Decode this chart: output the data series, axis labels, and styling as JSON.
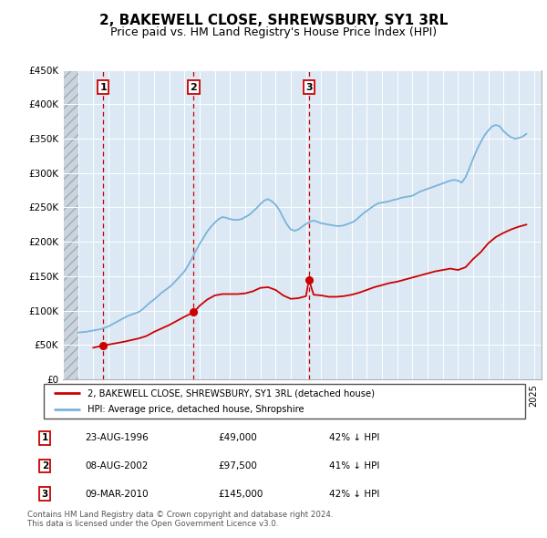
{
  "title": "2, BAKEWELL CLOSE, SHREWSBURY, SY1 3RL",
  "subtitle": "Price paid vs. HM Land Registry's House Price Index (HPI)",
  "title_fontsize": 11,
  "subtitle_fontsize": 9,
  "bg_color": "#ffffff",
  "plot_bg_color": "#dce9f5",
  "grid_color": "#ffffff",
  "ylim": [
    0,
    450000
  ],
  "yticks": [
    0,
    50000,
    100000,
    150000,
    200000,
    250000,
    300000,
    350000,
    400000,
    450000
  ],
  "ytick_labels": [
    "£0",
    "£50K",
    "£100K",
    "£150K",
    "£200K",
    "£250K",
    "£300K",
    "£350K",
    "£400K",
    "£450K"
  ],
  "xlim_start": 1994.0,
  "xlim_end": 2025.5,
  "sale_dates": [
    1996.644,
    2002.604,
    2010.187
  ],
  "sale_prices": [
    49000,
    97500,
    145000
  ],
  "sale_labels": [
    "1",
    "2",
    "3"
  ],
  "red_line_color": "#cc0000",
  "blue_line_color": "#7ab3d9",
  "legend_red_label": "2, BAKEWELL CLOSE, SHREWSBURY, SY1 3RL (detached house)",
  "legend_blue_label": "HPI: Average price, detached house, Shropshire",
  "table_rows": [
    [
      "1",
      "23-AUG-1996",
      "£49,000",
      "42% ↓ HPI"
    ],
    [
      "2",
      "08-AUG-2002",
      "£97,500",
      "41% ↓ HPI"
    ],
    [
      "3",
      "09-MAR-2010",
      "£145,000",
      "42% ↓ HPI"
    ]
  ],
  "footnote": "Contains HM Land Registry data © Crown copyright and database right 2024.\nThis data is licensed under the Open Government Licence v3.0.",
  "hpi_data": {
    "years": [
      1995.0,
      1995.25,
      1995.5,
      1995.75,
      1996.0,
      1996.25,
      1996.5,
      1996.75,
      1997.0,
      1997.25,
      1997.5,
      1997.75,
      1998.0,
      1998.25,
      1998.5,
      1998.75,
      1999.0,
      1999.25,
      1999.5,
      1999.75,
      2000.0,
      2000.25,
      2000.5,
      2000.75,
      2001.0,
      2001.25,
      2001.5,
      2001.75,
      2002.0,
      2002.25,
      2002.5,
      2002.75,
      2003.0,
      2003.25,
      2003.5,
      2003.75,
      2004.0,
      2004.25,
      2004.5,
      2004.75,
      2005.0,
      2005.25,
      2005.5,
      2005.75,
      2006.0,
      2006.25,
      2006.5,
      2006.75,
      2007.0,
      2007.25,
      2007.5,
      2007.75,
      2008.0,
      2008.25,
      2008.5,
      2008.75,
      2009.0,
      2009.25,
      2009.5,
      2009.75,
      2010.0,
      2010.25,
      2010.5,
      2010.75,
      2011.0,
      2011.25,
      2011.5,
      2011.75,
      2012.0,
      2012.25,
      2012.5,
      2012.75,
      2013.0,
      2013.25,
      2013.5,
      2013.75,
      2014.0,
      2014.25,
      2014.5,
      2014.75,
      2015.0,
      2015.25,
      2015.5,
      2015.75,
      2016.0,
      2016.25,
      2016.5,
      2016.75,
      2017.0,
      2017.25,
      2017.5,
      2017.75,
      2018.0,
      2018.25,
      2018.5,
      2018.75,
      2019.0,
      2019.25,
      2019.5,
      2019.75,
      2020.0,
      2020.25,
      2020.5,
      2020.75,
      2021.0,
      2021.25,
      2021.5,
      2021.75,
      2022.0,
      2022.25,
      2022.5,
      2022.75,
      2023.0,
      2023.25,
      2023.5,
      2023.75,
      2024.0,
      2024.25,
      2024.5
    ],
    "values": [
      68000,
      68500,
      69000,
      70000,
      71000,
      72000,
      73000,
      75000,
      77000,
      80000,
      83000,
      86000,
      89000,
      92000,
      94000,
      96000,
      98000,
      102000,
      107000,
      112000,
      116000,
      121000,
      126000,
      130000,
      134000,
      139000,
      145000,
      151000,
      157000,
      166000,
      176000,
      187000,
      197000,
      206000,
      215000,
      222000,
      228000,
      233000,
      236000,
      235000,
      233000,
      232000,
      232000,
      233000,
      236000,
      239000,
      244000,
      249000,
      255000,
      260000,
      262000,
      259000,
      254000,
      246000,
      235000,
      225000,
      218000,
      216000,
      218000,
      222000,
      226000,
      229000,
      231000,
      229000,
      227000,
      226000,
      225000,
      224000,
      223000,
      223000,
      224000,
      226000,
      228000,
      231000,
      236000,
      241000,
      245000,
      249000,
      253000,
      256000,
      257000,
      258000,
      259000,
      261000,
      262000,
      264000,
      265000,
      266000,
      267000,
      270000,
      273000,
      275000,
      277000,
      279000,
      281000,
      283000,
      285000,
      287000,
      289000,
      290000,
      289000,
      286000,
      294000,
      307000,
      321000,
      334000,
      345000,
      355000,
      362000,
      368000,
      370000,
      368000,
      361000,
      356000,
      352000,
      350000,
      351000,
      353000,
      357000
    ]
  },
  "red_data": {
    "years": [
      1996.0,
      1996.644,
      1997.0,
      1997.5,
      1998.0,
      1998.5,
      1999.0,
      1999.5,
      2000.0,
      2000.5,
      2001.0,
      2001.5,
      2002.0,
      2002.604,
      2003.0,
      2003.5,
      2004.0,
      2004.5,
      2005.0,
      2005.5,
      2006.0,
      2006.5,
      2007.0,
      2007.5,
      2008.0,
      2008.5,
      2009.0,
      2009.5,
      2010.0,
      2010.187,
      2010.5,
      2011.0,
      2011.5,
      2012.0,
      2012.5,
      2013.0,
      2013.5,
      2014.0,
      2014.5,
      2015.0,
      2015.5,
      2016.0,
      2016.5,
      2017.0,
      2017.5,
      2018.0,
      2018.5,
      2019.0,
      2019.5,
      2020.0,
      2020.5,
      2021.0,
      2021.5,
      2022.0,
      2022.5,
      2023.0,
      2023.5,
      2024.0,
      2024.5
    ],
    "values": [
      46000,
      49000,
      50500,
      52500,
      54500,
      57000,
      59500,
      63000,
      69000,
      74000,
      79000,
      85000,
      91000,
      97500,
      107000,
      116000,
      122000,
      124000,
      124000,
      124000,
      125000,
      128000,
      133000,
      134000,
      130000,
      122000,
      117000,
      118000,
      121000,
      145000,
      123000,
      122000,
      120000,
      120000,
      121000,
      123000,
      126000,
      130000,
      134000,
      137000,
      140000,
      142000,
      145000,
      148000,
      151000,
      154000,
      157000,
      159000,
      161000,
      159000,
      163000,
      175000,
      185000,
      198000,
      207000,
      213000,
      218000,
      222000,
      225000
    ]
  }
}
